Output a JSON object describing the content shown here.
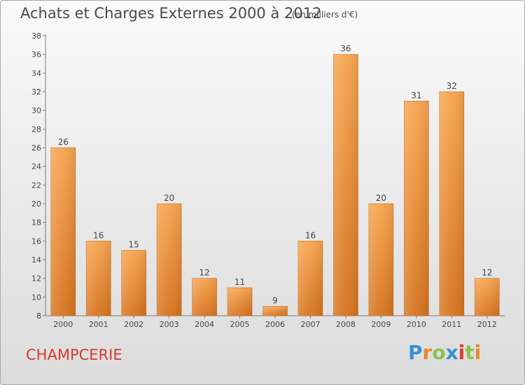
{
  "header": {
    "title": "Achats et Charges Externes 2000 à 2012",
    "subtitle": "(en milliers d'€)"
  },
  "footer": {
    "commune": "CHAMPCERIE",
    "logo_text": "Proxiti",
    "logo_colors": [
      "#3b8fd6",
      "#e9892a",
      "#8bc34a",
      "#3b8fd6",
      "#e53935",
      "#8bc34a",
      "#e9892a"
    ]
  },
  "colors": {
    "bar_light": "#f7a54f",
    "bar_dark": "#d7741f",
    "axis": "#7a7a7a",
    "grid_tick": "#555555",
    "commune": "#d63b2f"
  },
  "chart_data": {
    "type": "bar",
    "title": "Achats et Charges Externes 2000 à 2012",
    "subtitle": "(en milliers d'€)",
    "xlabel": "",
    "ylabel": "",
    "categories": [
      "2000",
      "2001",
      "2002",
      "2003",
      "2004",
      "2005",
      "2006",
      "2007",
      "2008",
      "2009",
      "2010",
      "2011",
      "2012"
    ],
    "values": [
      26,
      16,
      15,
      20,
      12,
      11,
      9,
      16,
      36,
      20,
      31,
      32,
      12
    ],
    "ylim": [
      8,
      38
    ],
    "yticks": [
      8,
      10,
      12,
      14,
      16,
      18,
      20,
      22,
      24,
      26,
      28,
      30,
      32,
      34,
      36,
      38
    ],
    "grid": false,
    "data_labels": true
  }
}
